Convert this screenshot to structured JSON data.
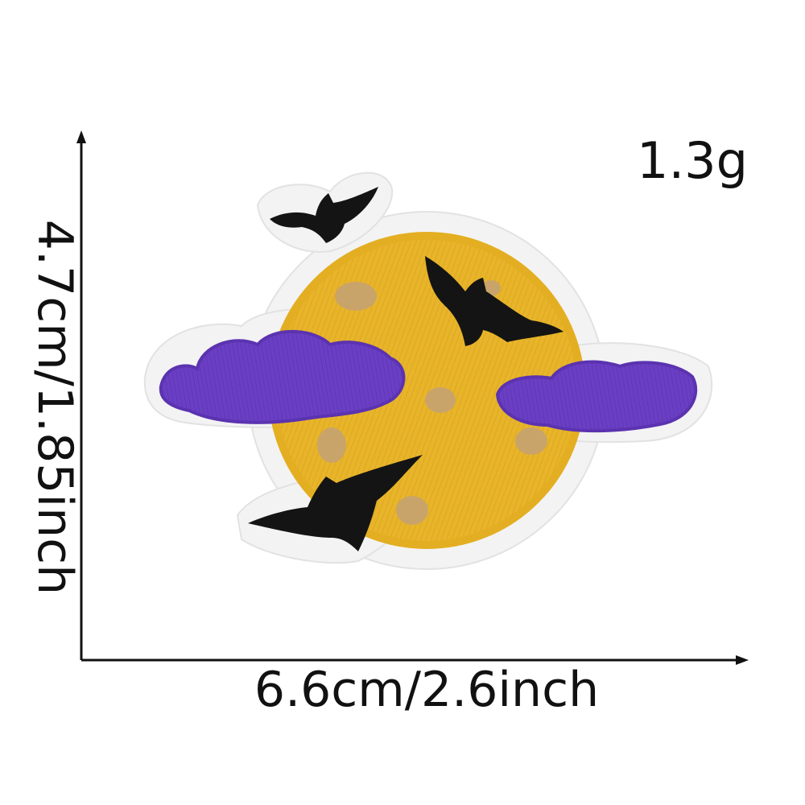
{
  "labels": {
    "weight": "1.3g",
    "width": "6.6cm/2.6inch",
    "height": "4.7cm/1.85inch"
  },
  "colors": {
    "moon": "#e8b52a",
    "moon_crater": "#c9a46a",
    "cloud": "#6a3fc4",
    "bat": "#141414",
    "patch_border": "#f4f4f4",
    "axis": "#111111"
  }
}
